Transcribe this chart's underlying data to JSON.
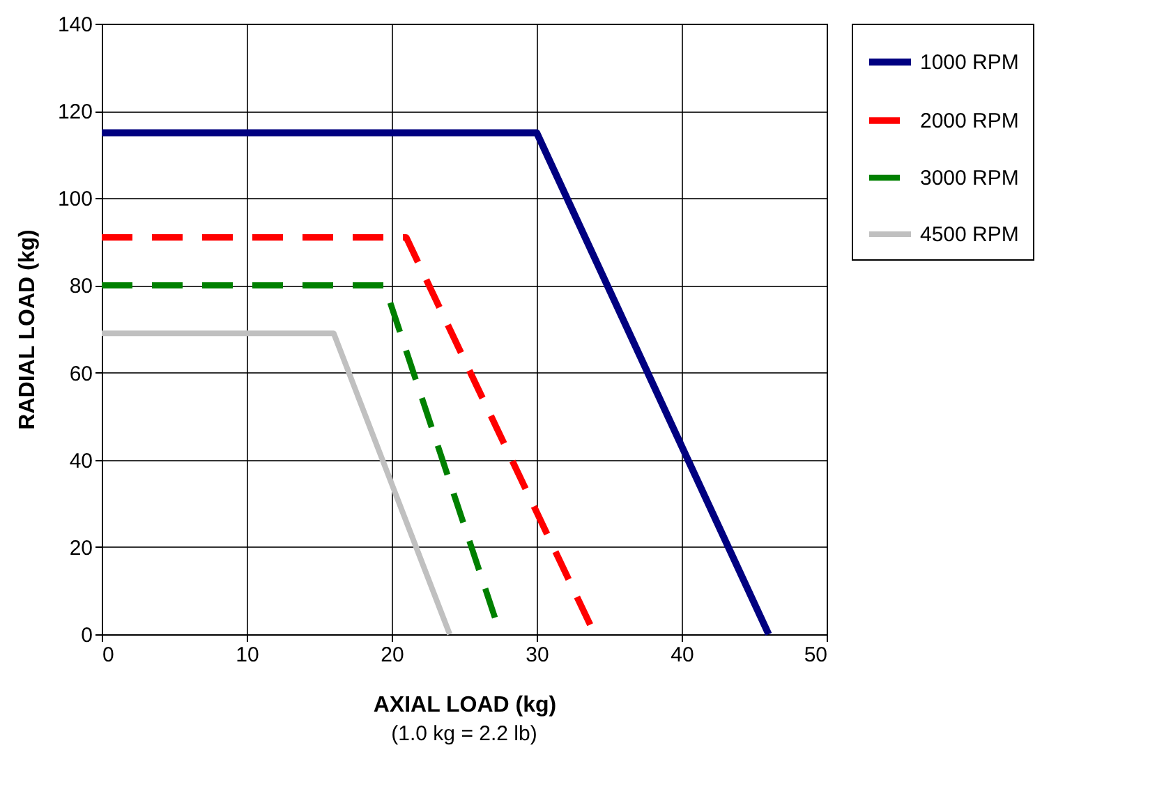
{
  "chart_data": {
    "type": "line",
    "xlabel": "AXIAL LOAD (kg)",
    "ylabel": "RADIAL LOAD (kg)",
    "annotations": [
      "(1.0 kg = 2.2 lb)"
    ],
    "series": [
      {
        "name": "1000 RPM",
        "color": "#000080",
        "line_style": "solid",
        "x": [
          0,
          30,
          46
        ],
        "values": [
          115,
          115,
          0
        ]
      },
      {
        "name": "2000 RPM",
        "color": "#ff0000",
        "line_style": "dashed",
        "x": [
          0,
          21,
          34
        ],
        "values": [
          91,
          91,
          0
        ]
      },
      {
        "name": "3000 RPM",
        "color": "#008000",
        "line_style": "dashed",
        "x": [
          0,
          19.5,
          27.5
        ],
        "values": [
          80,
          80,
          0
        ]
      },
      {
        "name": "4500 RPM",
        "color": "#c0c0c0",
        "line_style": "solid",
        "x": [
          0,
          16,
          24
        ],
        "values": [
          69,
          69,
          0
        ]
      }
    ],
    "xlim": [
      0,
      50
    ],
    "xticks": [
      0,
      10,
      20,
      30,
      40,
      50
    ],
    "ylim": [
      0,
      140
    ],
    "yticks": [
      0,
      20,
      40,
      60,
      80,
      100,
      120,
      140
    ],
    "grid": true,
    "legend": "right",
    "marker": "none"
  }
}
